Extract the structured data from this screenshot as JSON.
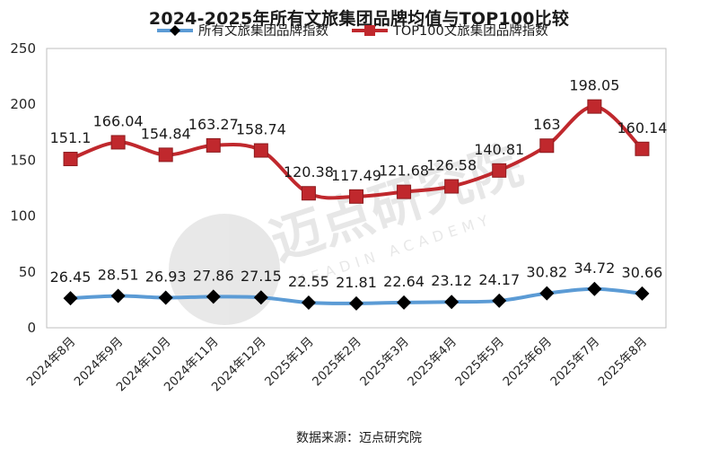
{
  "chart_data": {
    "type": "line",
    "title": "2024-2025年所有文旅集团品牌均值与TOP100比较",
    "categories": [
      "2024年8月",
      "2024年9月",
      "2024年10月",
      "2024年11月",
      "2024年12月",
      "2025年1月",
      "2025年2月",
      "2025年3月",
      "2025年4月",
      "2025年5月",
      "2025年6月",
      "2025年7月",
      "2025年8月"
    ],
    "ylim": [
      0,
      250
    ],
    "yticks": [
      0,
      50,
      100,
      150,
      200,
      250
    ],
    "grid": false,
    "legend_position": "top",
    "series": [
      {
        "name": "所有文旅集团品牌指数",
        "values": [
          26.45,
          28.51,
          26.93,
          27.86,
          27.15,
          22.55,
          21.81,
          22.64,
          23.12,
          24.17,
          30.82,
          34.72,
          30.66
        ],
        "labels": [
          "26.45",
          "28.51",
          "26.93",
          "27.86",
          "27.15",
          "22.55",
          "21.81",
          "22.64",
          "23.12",
          "24.17",
          "30.82",
          "34.72",
          "30.66"
        ],
        "line_color": "#5b9bd5",
        "marker": "diamond",
        "marker_color": "#000000"
      },
      {
        "name": "TOP100文旅集团品牌指数",
        "values": [
          151.1,
          166.04,
          154.84,
          163.27,
          158.74,
          120.38,
          117.49,
          121.68,
          126.58,
          140.81,
          163,
          198.05,
          160.14
        ],
        "labels": [
          "151.1",
          "166.04",
          "154.84",
          "163.27",
          "158.74",
          "120.38",
          "117.49",
          "121.68",
          "126.58",
          "140.81",
          "163",
          "198.05",
          "160.14"
        ],
        "line_color": "#c0282d",
        "marker": "square",
        "marker_color": "#c0282d"
      }
    ]
  },
  "watermark": {
    "text": "迈点研究院",
    "subtext": "MEADIN ACADEMY"
  },
  "source": "数据来源：迈点研究院"
}
